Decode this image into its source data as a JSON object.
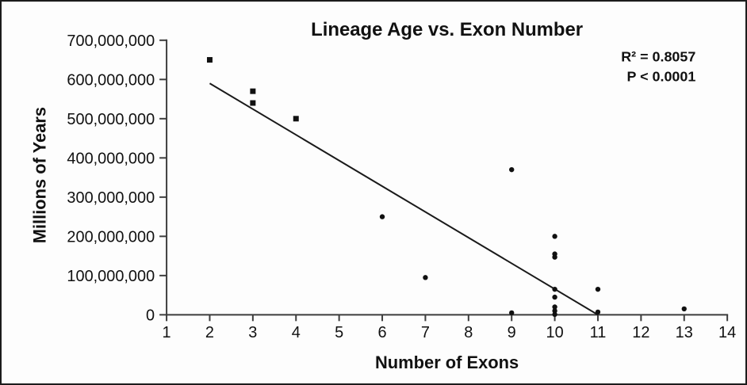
{
  "chart_data": {
    "type": "scatter",
    "title": "Lineage Age vs. Exon Number",
    "xlabel": "Number of Exons",
    "ylabel": "Millions of Years",
    "annotations": {
      "r_squared": "R² = 0.8057",
      "p_value": "P < 0.0001"
    },
    "xlim": [
      1,
      14
    ],
    "ylim": [
      0,
      700000000
    ],
    "x_ticks": [
      1,
      2,
      3,
      4,
      5,
      6,
      7,
      8,
      9,
      10,
      11,
      12,
      13,
      14
    ],
    "x_tick_labels": [
      "1",
      "2",
      "3",
      "4",
      "5",
      "6",
      "7",
      "8",
      "9",
      "10",
      "11",
      "12",
      "13",
      "14"
    ],
    "y_ticks": [
      0,
      100000000,
      200000000,
      300000000,
      400000000,
      500000000,
      600000000,
      700000000
    ],
    "y_tick_labels": [
      "0",
      "100,000,000",
      "200,000,000",
      "300,000,000",
      "400,000,000",
      "500,000,000",
      "600,000,000",
      "700,000,000"
    ],
    "grid": false,
    "legend": "none",
    "series": [
      {
        "name": "square-marker-points",
        "marker": "square",
        "points": [
          [
            2,
            650000000
          ],
          [
            3,
            570000000
          ],
          [
            3,
            540000000
          ],
          [
            4,
            500000000
          ]
        ]
      },
      {
        "name": "circle-marker-points",
        "marker": "circle",
        "points": [
          [
            6,
            250000000
          ],
          [
            7,
            95000000
          ],
          [
            9,
            370000000
          ],
          [
            9,
            5000000
          ],
          [
            10,
            200000000
          ],
          [
            10,
            155000000
          ],
          [
            10,
            147000000
          ],
          [
            10,
            65000000
          ],
          [
            10,
            45000000
          ],
          [
            10,
            20000000
          ],
          [
            10,
            10000000
          ],
          [
            10,
            1000000
          ],
          [
            11,
            65000000
          ],
          [
            11,
            7000000
          ],
          [
            13,
            15000000
          ]
        ]
      }
    ],
    "trendline": {
      "x_start": 2.0,
      "y_start": 590000000,
      "x_end": 11.0,
      "y_end": 0
    },
    "colors": {
      "background": "#fdfdfd",
      "border": "#1c1c1c",
      "axis": "#3d3d3d",
      "marker": "#111111",
      "trendline": "#1a1a1a",
      "text": "#111111"
    }
  }
}
